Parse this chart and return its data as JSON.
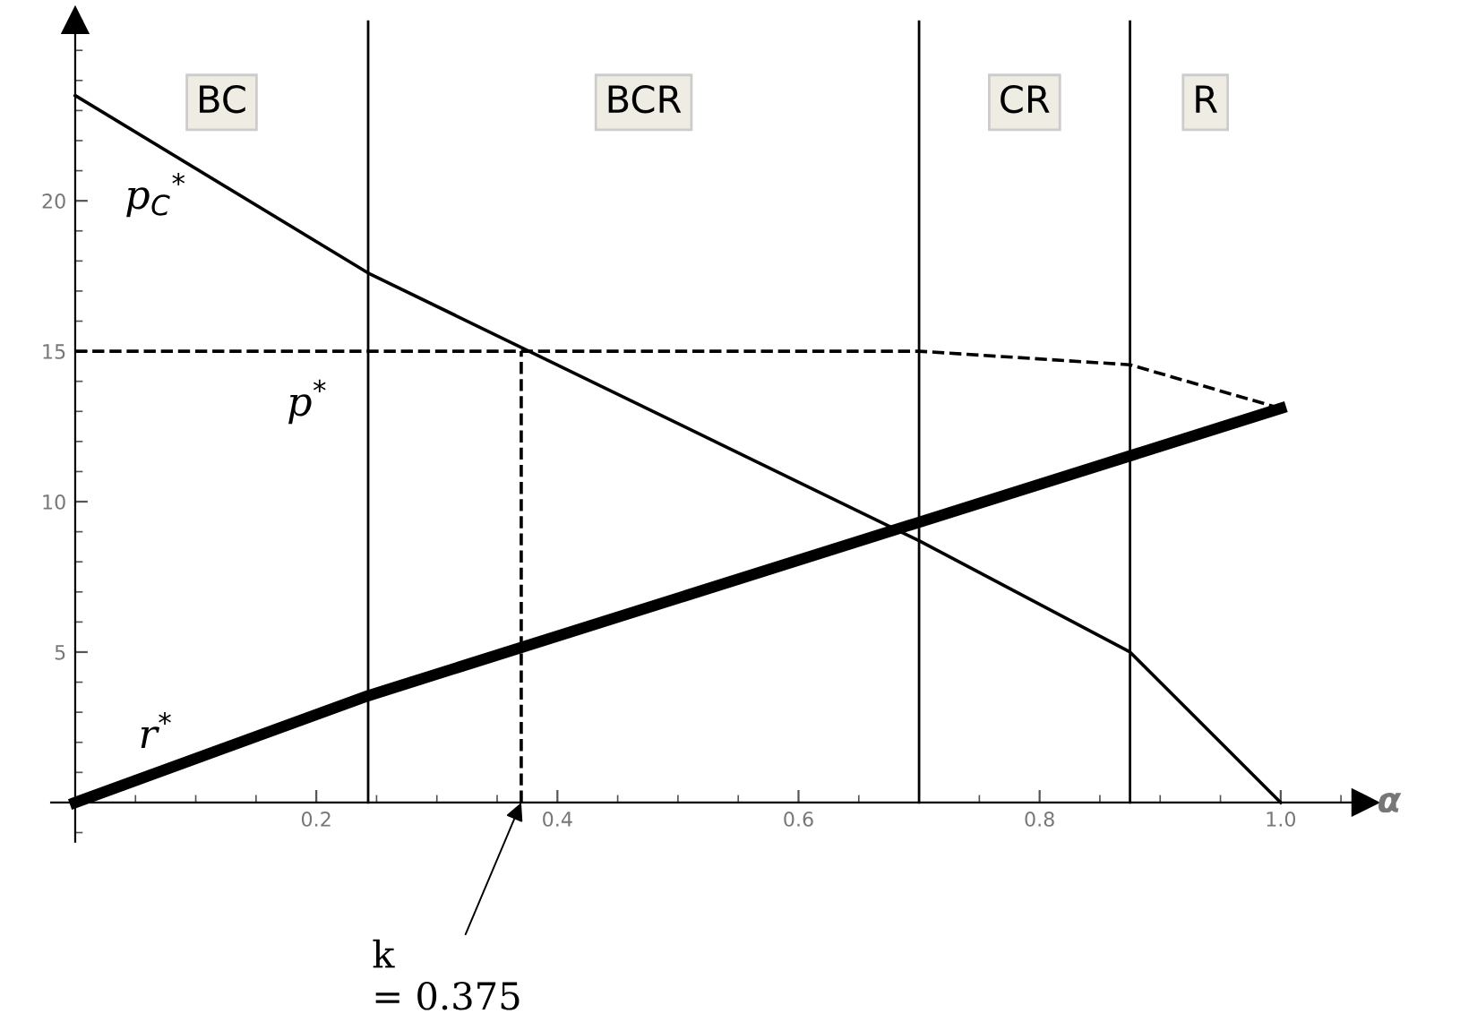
{
  "chart_data": {
    "type": "line",
    "xlabel": "α",
    "xlim": [
      -0.02,
      1.07
    ],
    "ylim": [
      -1.3,
      26
    ],
    "xticks": [
      0.2,
      0.4,
      0.6,
      0.8,
      {
        "value": 1.0,
        "label": "1.0"
      }
    ],
    "yticks": [
      5,
      10,
      15,
      20
    ],
    "grid": false,
    "marker": "none",
    "series": [
      {
        "name": "p$_{C}$$^{*}$",
        "color": "#000000",
        "x": [
          0,
          0.243,
          0.7,
          0.875,
          1.0
        ],
        "values": [
          23.5,
          17.6,
          8.7,
          5.0,
          0
        ],
        "line_style": "solid"
      },
      {
        "name": "p$^{*}$",
        "color": "#000000",
        "x": [
          0,
          0.7,
          0.875,
          1.0
        ],
        "values": [
          15,
          15,
          14.55,
          13.1
        ],
        "line_style": "dashed"
      },
      {
        "name": "r$^{*}$",
        "color": "#000000",
        "x": [
          0,
          0.243,
          1.0
        ],
        "values": [
          0,
          3.55,
          13.1
        ],
        "line_style": "solid"
      },
      {
        "color": "#000000",
        "x": [
          0.37,
          0.37
        ],
        "values": [
          0,
          15
        ],
        "line_style": "dashed"
      }
    ],
    "ref_lines": [
      {
        "axis": "x",
        "value": 0.243,
        "color": "#000000"
      },
      {
        "axis": "x",
        "value": 0.7,
        "color": "#000000"
      },
      {
        "axis": "x",
        "value": 0.875,
        "color": "#000000"
      }
    ],
    "annotations": [
      "BC",
      "BCR",
      "CR",
      "R",
      {
        "text": "k\n= 0.375",
        "x": 0.37,
        "y": 0
      }
    ]
  }
}
